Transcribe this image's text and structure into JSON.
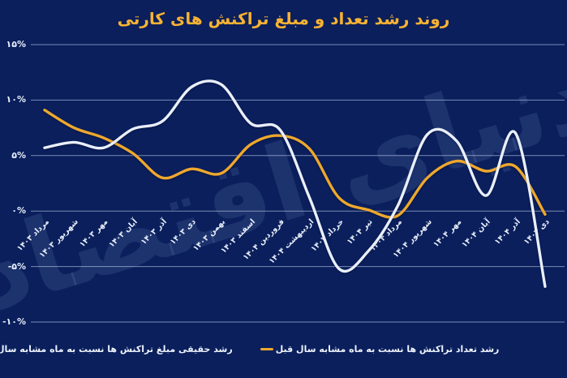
{
  "title": "روند رشد تعداد و مبلغ تراکنش های کارتی",
  "watermark": "دنیای اقتصاد",
  "colors": {
    "background": "#0a1f5c",
    "title": "#f8b233",
    "count_line": "#eea82d",
    "amount_line": "#e9effb",
    "gridline": "rgba(196,211,236,0.6)",
    "axis_text": "#e9effb"
  },
  "legend": [
    {
      "label": "رشد تعداد تراکنش ها نسبت به ماه مشابه سال قبل",
      "series_key": "count",
      "marker_color": "#eea82d"
    },
    {
      "label": "رشد حقیقی مبلغ تراکنش ها نسبت به ماه مشابه سال قبل",
      "series_key": "amount",
      "marker_color": "#e9effb"
    }
  ],
  "y_axis": {
    "tick_labels": [
      "۱۵%",
      "۱۰%",
      "۵%",
      "۰%",
      "-۵%",
      "-۱۰%"
    ],
    "tick_values": [
      15,
      10,
      5,
      0,
      -5,
      -10
    ]
  },
  "chart_data": {
    "type": "line",
    "title": "روند رشد تعداد و مبلغ تراکنش های کارتی",
    "categories": [
      "مرداد ۱۴۰۳",
      "شهریور ۱۴۰۳",
      "مهر ۱۴۰۳",
      "آبان ۱۴۰۳",
      "آذر ۱۴۰۳",
      "دی ۱۴۰۳",
      "بهمن ۱۴۰۳",
      "اسفند ۱۴۰۳",
      "فروردین ۱۴۰۴",
      "اردیبهشت ۱۴۰۴",
      "خرداد ۱۴۰۴",
      "تیر ۱۴۰۴",
      "مرداد ۱۴۰۴",
      "شهریور ۱۴۰۴",
      "مهر ۱۴۰۴",
      "آبان ۱۴۰۴",
      "آذر ۱۴۰۴",
      "دی ۱۴۰۴"
    ],
    "series": [
      {
        "name": "رشد تعداد تراکنش ها نسبت به ماه مشابه سال قبل",
        "color": "#eea82d",
        "values": [
          9.1,
          7.5,
          6.6,
          5.2,
          3.0,
          3.8,
          3.4,
          6.0,
          6.8,
          5.6,
          1.2,
          0.1,
          -0.4,
          3.0,
          4.5,
          3.6,
          4.0,
          -0.3
        ]
      },
      {
        "name": "رشد حقیقی مبلغ تراکنش ها نسبت به ماه مشابه سال قبل",
        "color": "#e9effb",
        "values": [
          5.7,
          6.2,
          5.7,
          7.4,
          8.1,
          11.2,
          11.4,
          7.9,
          7.3,
          1.2,
          -5.2,
          -3.6,
          0.5,
          6.9,
          6.3,
          1.4,
          7.0,
          -6.8
        ]
      }
    ],
    "ylim": [
      -10,
      15
    ],
    "y_ticks": [
      15,
      10,
      5,
      0,
      -5,
      -10
    ],
    "grid": "horizontal",
    "legend_position": "bottom",
    "x_tick_rotation": 45
  }
}
